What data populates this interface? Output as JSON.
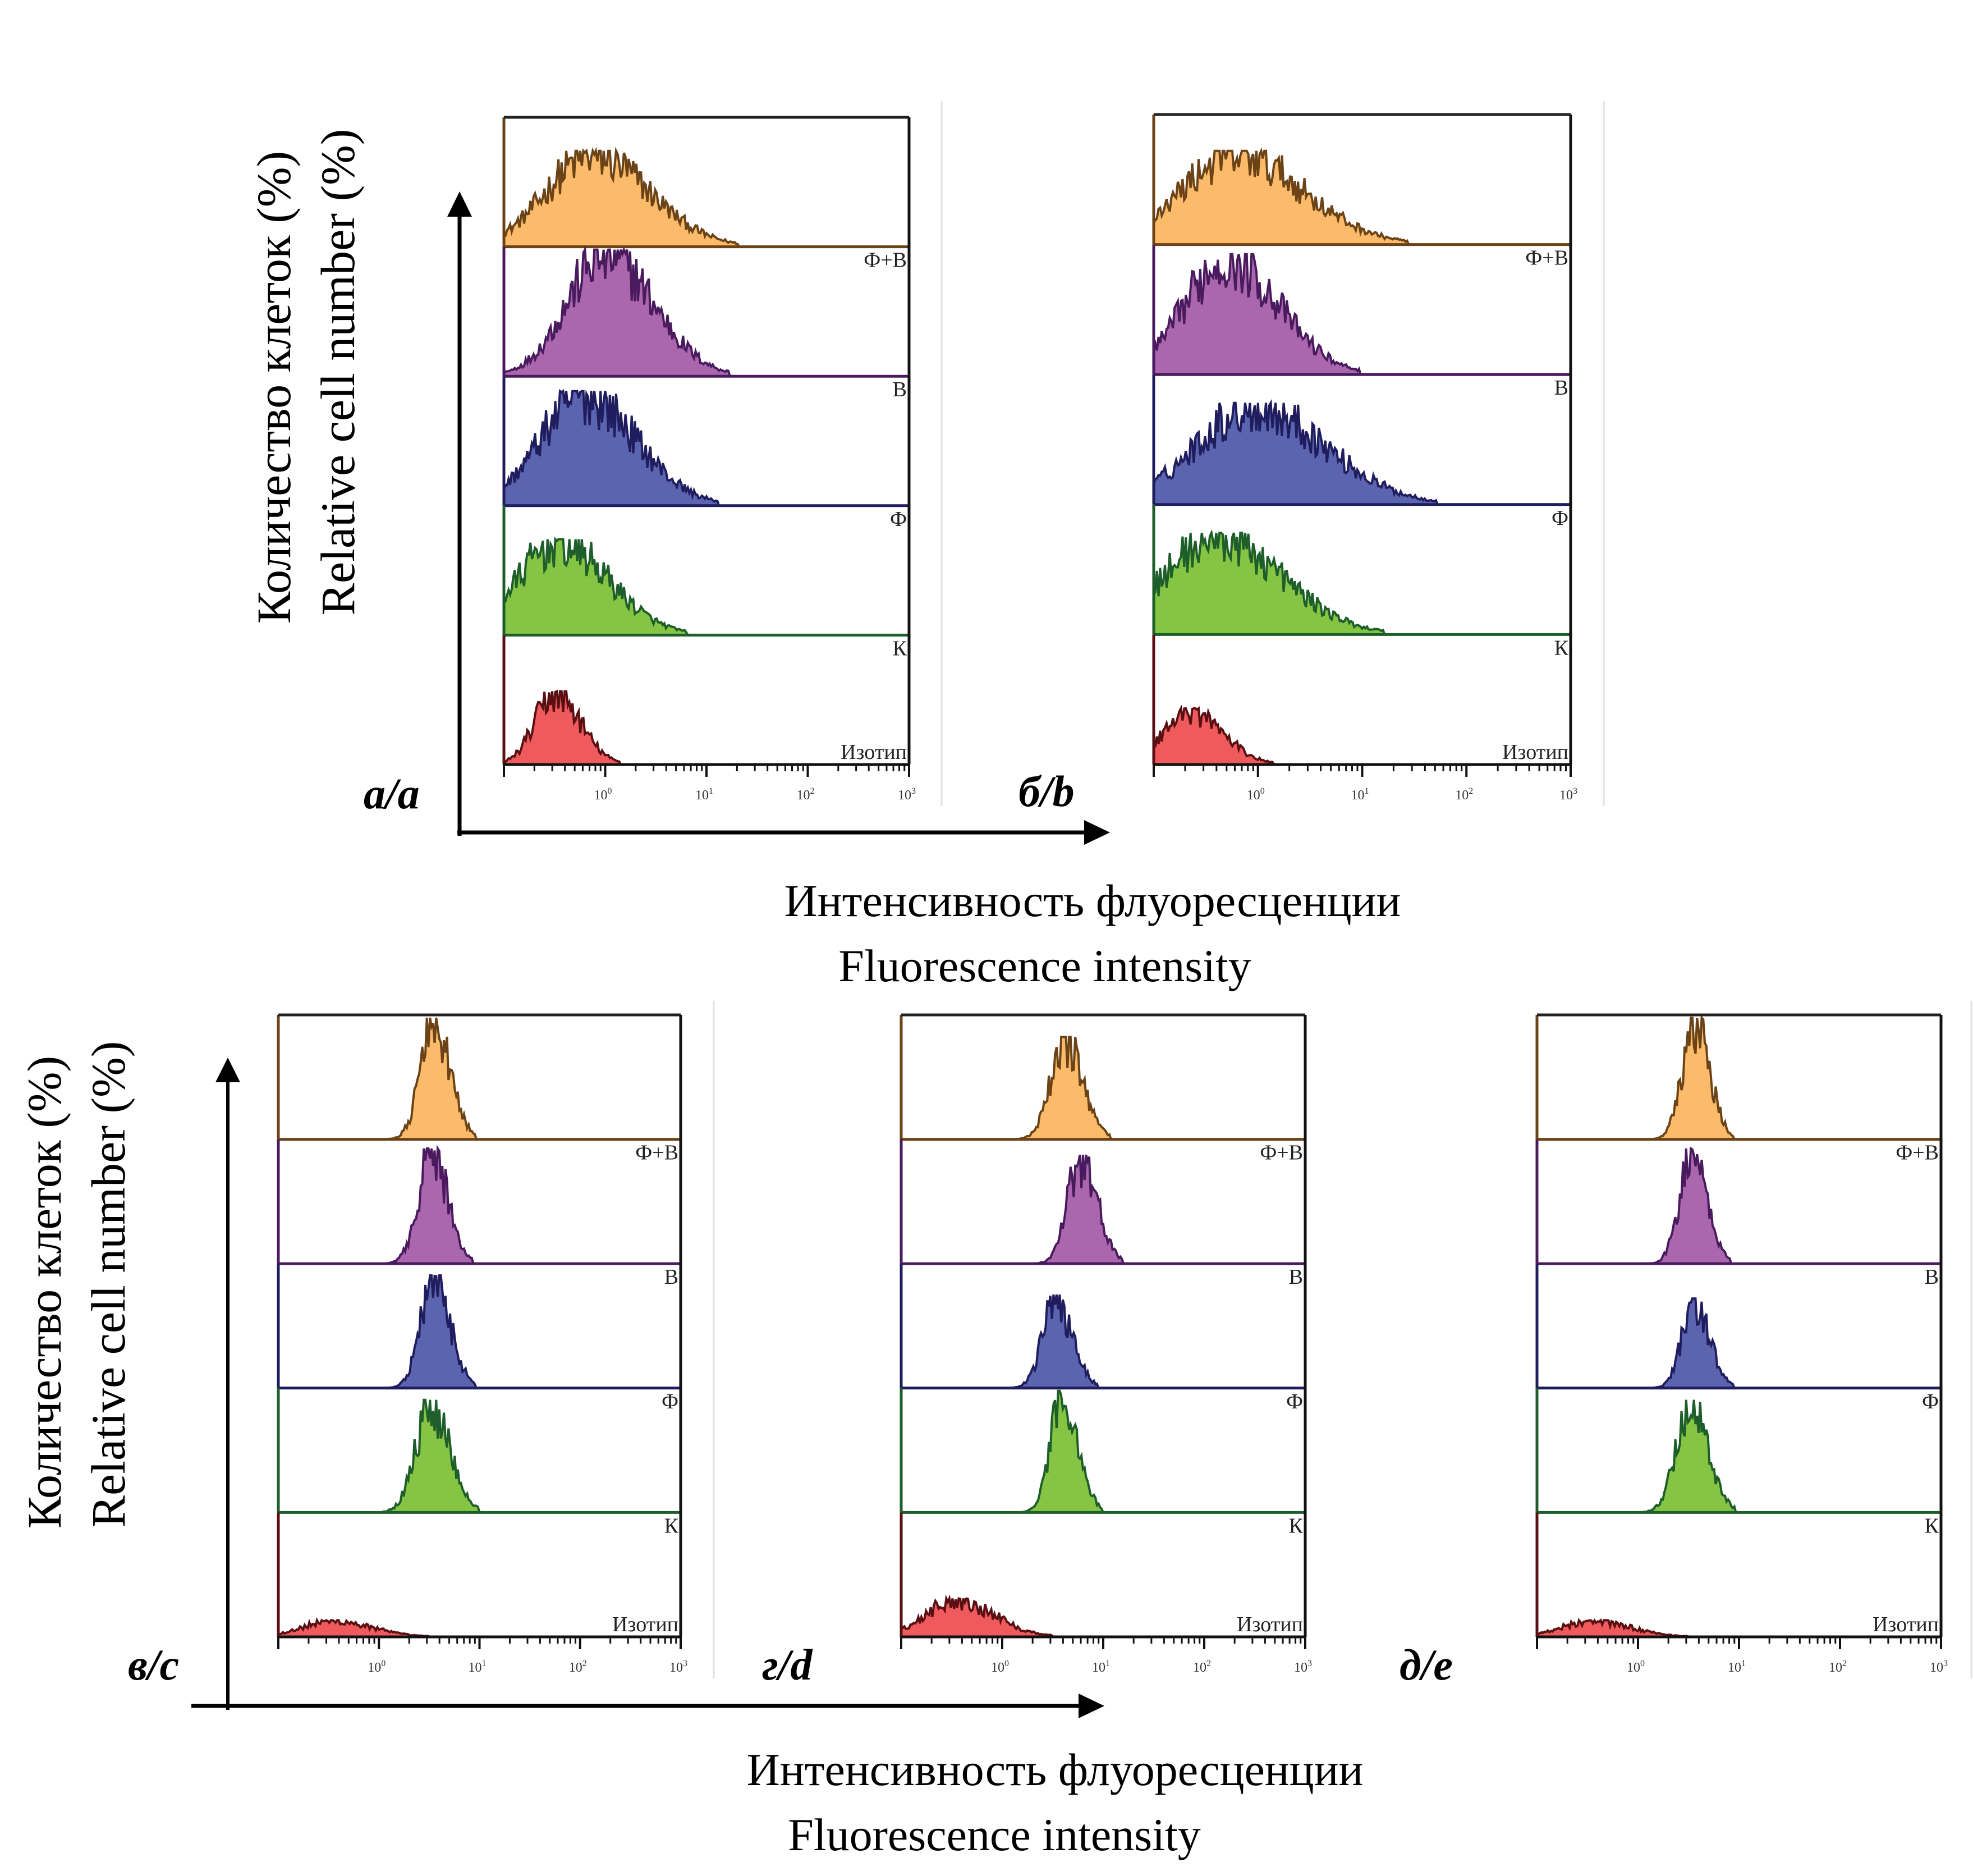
{
  "figure": {
    "y_axis_label_ru": "Количество клеток (%)",
    "y_axis_label_en": "Relative cell number  (%)",
    "y_axis_label_en_bottom": "Relative cell number (%)",
    "x_axis_label_ru": "Интенсивность флуоресценции",
    "x_axis_label_en": "Fluorescence intensity"
  },
  "chart_data": [
    {
      "type": "area",
      "panel": "а/a",
      "x_scale": "log",
      "xlim": [
        0.1,
        1000
      ],
      "x_ticks": [
        "10^0",
        "10^1",
        "10^2",
        "10^3"
      ],
      "xlabel": "Интенсивность флуоресценции / Fluorescence intensity",
      "ylabel": "Количество клеток (%) / Relative cell number (%)",
      "series": [
        {
          "name": "Ф+В",
          "peak_x": 0.74,
          "peak_rel_height": 0.72,
          "spread_decades": 0.45,
          "fill": "#FBBB6A",
          "line": "#6B4316"
        },
        {
          "name": "В",
          "peak_x": 1.0,
          "peak_rel_height": 0.95,
          "spread_decades": 0.38,
          "fill": "#AB67AE",
          "line": "#4A1A5E"
        },
        {
          "name": "Ф",
          "peak_x": 0.6,
          "peak_rel_height": 0.86,
          "spread_decades": 0.42,
          "fill": "#5B64AE",
          "line": "#1F1D5E"
        },
        {
          "name": "К",
          "peak_x": 0.34,
          "peak_rel_height": 0.72,
          "spread_decades": 0.4,
          "fill": "#86C443",
          "line": "#1E5E2A"
        },
        {
          "name": "Изотип",
          "peak_x": 0.32,
          "peak_rel_height": 0.55,
          "spread_decades": 0.2,
          "fill": "#EF5A5C",
          "line": "#5A0F12"
        }
      ]
    },
    {
      "type": "area",
      "panel": "б/b",
      "x_scale": "log",
      "xlim": [
        0.1,
        1000
      ],
      "x_ticks": [
        "10^0",
        "10^1",
        "10^2",
        "10^3"
      ],
      "series": [
        {
          "name": "Ф+В",
          "peak_x": 0.6,
          "peak_rel_height": 0.7,
          "spread_decades": 0.52,
          "fill": "#FBBB6A",
          "line": "#6B4316"
        },
        {
          "name": "В",
          "peak_x": 0.5,
          "peak_rel_height": 0.9,
          "spread_decades": 0.4,
          "fill": "#AB67AE",
          "line": "#4A1A5E"
        },
        {
          "name": "Ф",
          "peak_x": 0.9,
          "peak_rel_height": 0.76,
          "spread_decades": 0.55,
          "fill": "#5B64AE",
          "line": "#1F1D5E"
        },
        {
          "name": "К",
          "peak_x": 0.4,
          "peak_rel_height": 0.76,
          "spread_decades": 0.5,
          "fill": "#86C443",
          "line": "#1E5E2A"
        },
        {
          "name": "Изотип",
          "peak_x": 0.22,
          "peak_rel_height": 0.42,
          "spread_decades": 0.25,
          "fill": "#EF5A5C",
          "line": "#5A0F12"
        }
      ]
    },
    {
      "type": "area",
      "panel": "в/c",
      "x_scale": "log",
      "xlim": [
        0.1,
        1000
      ],
      "x_ticks": [
        "10^0",
        "10^1",
        "10^2",
        "10^3"
      ],
      "series": [
        {
          "name": "Ф+В",
          "peak_x": 3.5,
          "peak_rel_height": 0.95,
          "spread_decades": 0.13,
          "fill": "#FBBB6A",
          "line": "#6B4316"
        },
        {
          "name": "В",
          "peak_x": 3.3,
          "peak_rel_height": 0.9,
          "spread_decades": 0.13,
          "fill": "#AB67AE",
          "line": "#4A1A5E"
        },
        {
          "name": "Ф",
          "peak_x": 3.5,
          "peak_rel_height": 0.88,
          "spread_decades": 0.13,
          "fill": "#5B64AE",
          "line": "#1F1D5E"
        },
        {
          "name": "К",
          "peak_x": 3.3,
          "peak_rel_height": 0.88,
          "spread_decades": 0.15,
          "fill": "#86C443",
          "line": "#1E5E2A"
        },
        {
          "name": "Изотип",
          "peak_x": 0.35,
          "peak_rel_height": 0.13,
          "spread_decades": 0.3,
          "fill": "#EF5A5C",
          "line": "#5A0F12"
        }
      ]
    },
    {
      "type": "area",
      "panel": "г/d",
      "x_scale": "log",
      "xlim": [
        0.1,
        1000
      ],
      "x_ticks": [
        "10^0",
        "10^1",
        "10^2",
        "10^3"
      ],
      "series": [
        {
          "name": "Ф+В",
          "peak_x": 4.2,
          "peak_rel_height": 0.8,
          "spread_decades": 0.14,
          "fill": "#FBBB6A",
          "line": "#6B4316"
        },
        {
          "name": "В",
          "peak_x": 6.0,
          "peak_rel_height": 0.85,
          "spread_decades": 0.13,
          "fill": "#AB67AE",
          "line": "#4A1A5E"
        },
        {
          "name": "Ф",
          "peak_x": 3.4,
          "peak_rel_height": 0.73,
          "spread_decades": 0.13,
          "fill": "#5B64AE",
          "line": "#1F1D5E"
        },
        {
          "name": "К",
          "peak_x": 4.0,
          "peak_rel_height": 0.95,
          "spread_decades": 0.12,
          "fill": "#86C443",
          "line": "#1E5E2A"
        },
        {
          "name": "Изотип",
          "peak_x": 0.35,
          "peak_rel_height": 0.3,
          "spread_decades": 0.3,
          "fill": "#EF5A5C",
          "line": "#5A0F12"
        }
      ]
    },
    {
      "type": "area",
      "panel": "д/e",
      "x_scale": "log",
      "xlim": [
        0.1,
        1000
      ],
      "x_ticks": [
        "10^0",
        "10^1",
        "10^2",
        "10^3"
      ],
      "series": [
        {
          "name": "Ф+В",
          "peak_x": 3.6,
          "peak_rel_height": 0.95,
          "spread_decades": 0.12,
          "fill": "#FBBB6A",
          "line": "#6B4316"
        },
        {
          "name": "В",
          "peak_x": 3.4,
          "peak_rel_height": 0.9,
          "spread_decades": 0.12,
          "fill": "#AB67AE",
          "line": "#4A1A5E"
        },
        {
          "name": "Ф",
          "peak_x": 3.6,
          "peak_rel_height": 0.7,
          "spread_decades": 0.12,
          "fill": "#5B64AE",
          "line": "#1F1D5E"
        },
        {
          "name": "К",
          "peak_x": 3.3,
          "peak_rel_height": 0.88,
          "spread_decades": 0.14,
          "fill": "#86C443",
          "line": "#1E5E2A"
        },
        {
          "name": "Изотип",
          "peak_x": 0.35,
          "peak_rel_height": 0.13,
          "spread_decades": 0.3,
          "fill": "#EF5A5C",
          "line": "#5A0F12"
        }
      ]
    }
  ]
}
